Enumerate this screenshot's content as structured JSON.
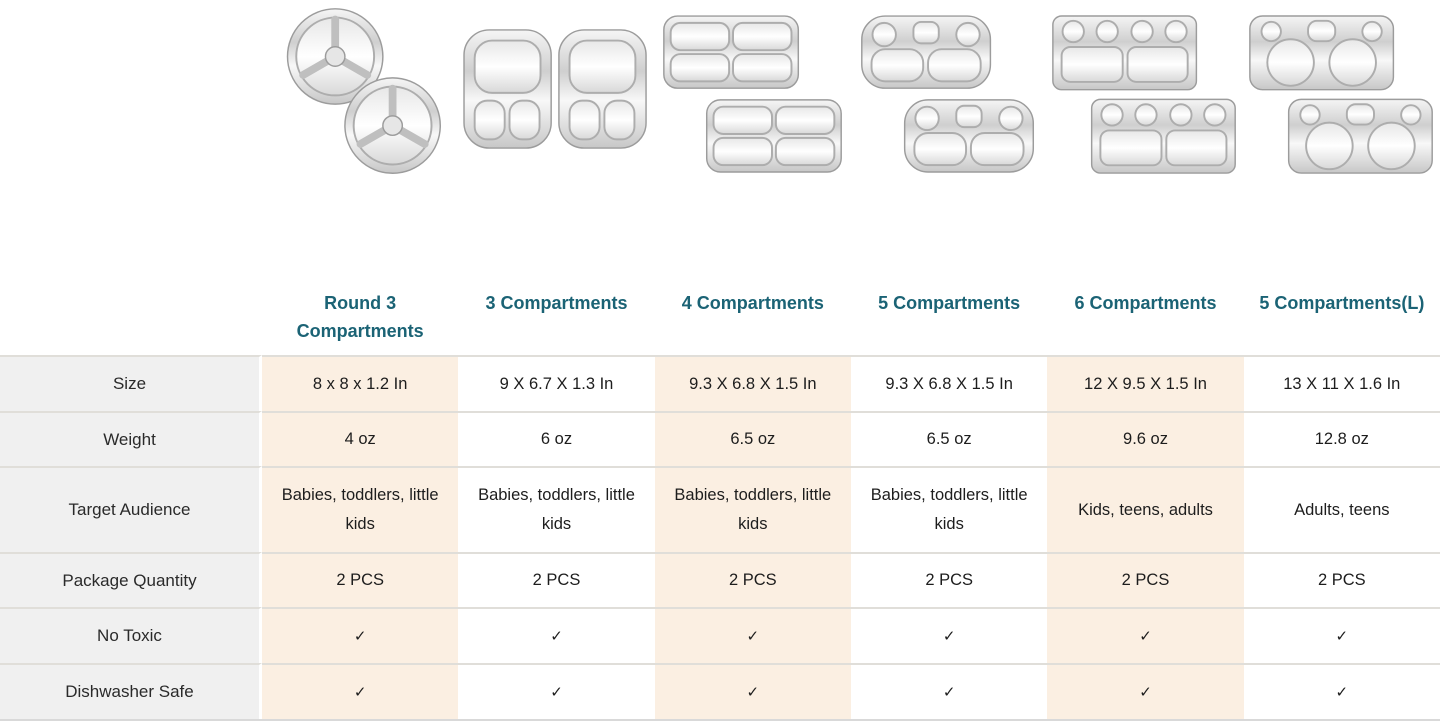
{
  "colors": {
    "header_teal": "#1b6375",
    "peach": "#fbefe2",
    "label_bg": "#f0f0f0",
    "separator": "#e0ded9",
    "steel_rim": "#9c9c9c",
    "steel_inner_rim": "#adadad"
  },
  "row_defs": [
    {
      "key": "size",
      "label": "Size"
    },
    {
      "key": "weight",
      "label": "Weight"
    },
    {
      "key": "audience",
      "label": "Target Audience"
    },
    {
      "key": "quantity",
      "label": "Package Quantity"
    },
    {
      "key": "no_toxic",
      "label": "No Toxic"
    },
    {
      "key": "dishwasher",
      "label": "Dishwasher Safe"
    }
  ],
  "products": [
    {
      "title": "Round 3 Compartments",
      "image_type": "round3",
      "image_alt": "two round stainless steel plates with 3 sections",
      "size": "8 x 8 x 1.2 In",
      "weight": "4 oz",
      "audience": "Babies, toddlers, little kids",
      "quantity": "2 PCS",
      "no_toxic": "✓",
      "dishwasher": "✓"
    },
    {
      "title": "3 Compartments",
      "image_type": "comp3",
      "image_alt": "two stainless steel trays with 3 sections side by side",
      "size": "9 X 6.7 X 1.3 In",
      "weight": "6 oz",
      "audience": "Babies, toddlers, little kids",
      "quantity": "2 PCS",
      "no_toxic": "✓",
      "dishwasher": "✓"
    },
    {
      "title": "4 Compartments",
      "image_type": "comp4",
      "image_alt": "two stainless steel trays with 4 sections",
      "size": "9.3 X 6.8 X 1.5 In",
      "weight": "6.5 oz",
      "audience": "Babies, toddlers, little kids",
      "quantity": "2 PCS",
      "no_toxic": "✓",
      "dishwasher": "✓"
    },
    {
      "title": "5 Compartments",
      "image_type": "comp5",
      "image_alt": "two stainless steel trays with 5 sections",
      "size": "9.3 X 6.8 X 1.5 In",
      "weight": "6.5 oz",
      "audience": "Babies, toddlers, little kids",
      "quantity": "2 PCS",
      "no_toxic": "✓",
      "dishwasher": "✓"
    },
    {
      "title": "6 Compartments",
      "image_type": "comp6",
      "image_alt": "two stainless steel trays with 6 sections",
      "size": "12 X 9.5 X 1.5 In",
      "weight": "9.6 oz",
      "audience": "Kids, teens, adults",
      "quantity": "2 PCS",
      "no_toxic": "✓",
      "dishwasher": "✓"
    },
    {
      "title": "5 Compartments(L)",
      "image_type": "comp5L",
      "image_alt": "two large stainless steel trays with 5 sections",
      "size": "13 X 11 X 1.6 In",
      "weight": "12.8 oz",
      "audience": "Adults, teens",
      "quantity": "2 PCS",
      "no_toxic": "✓",
      "dishwasher": "✓"
    }
  ],
  "chart_data": {
    "type": "table",
    "columns": [
      "",
      "Round 3 Compartments",
      "3 Compartments",
      "4 Compartments",
      "5 Compartments",
      "6 Compartments",
      "5 Compartments(L)"
    ],
    "rows": [
      [
        "Size",
        "8 x 8 x 1.2 In",
        "9 X 6.7 X 1.3 In",
        "9.3 X 6.8 X 1.5 In",
        "9.3 X 6.8 X 1.5 In",
        "12 X 9.5 X 1.5 In",
        "13 X 11 X 1.6 In"
      ],
      [
        "Weight",
        "4 oz",
        "6 oz",
        "6.5 oz",
        "6.5 oz",
        "9.6 oz",
        "12.8 oz"
      ],
      [
        "Target Audience",
        "Babies, toddlers, little kids",
        "Babies, toddlers, little kids",
        "Babies, toddlers, little kids",
        "Babies, toddlers, little kids",
        "Kids, teens, adults",
        "Adults, teens"
      ],
      [
        "Package Quantity",
        "2 PCS",
        "2 PCS",
        "2 PCS",
        "2 PCS",
        "2 PCS",
        "2 PCS"
      ],
      [
        "No Toxic",
        "✓",
        "✓",
        "✓",
        "✓",
        "✓",
        "✓"
      ],
      [
        "Dishwasher Safe",
        "✓",
        "✓",
        "✓",
        "✓",
        "✓",
        "✓"
      ]
    ],
    "layout": {
      "header_text_color": "#1b6375",
      "highlight_columns": [
        1,
        3,
        5
      ],
      "highlight_color": "#fbefe2",
      "label_column_color": "#f0f0f0"
    }
  }
}
